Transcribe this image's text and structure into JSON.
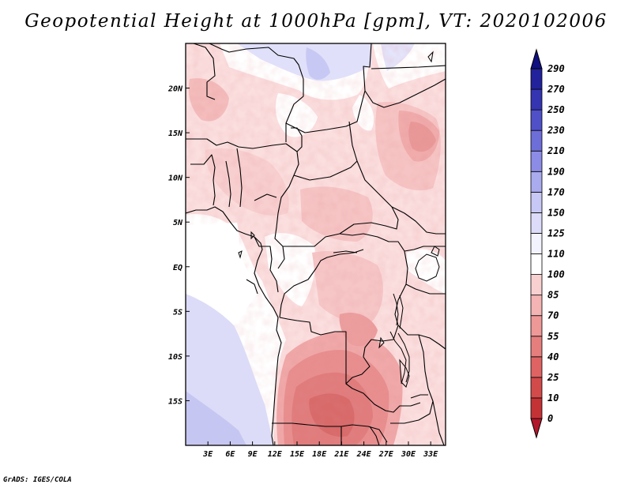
{
  "title": "Geopotential Height at 1000hPa [gpm], VT: 2020102006",
  "credit": "GrADS: IGES/COLA",
  "map": {
    "lon_range": [
      0,
      35
    ],
    "lat_range": [
      -20,
      25
    ],
    "lon_ticks": [
      {
        "value": 3,
        "label": "3E"
      },
      {
        "value": 6,
        "label": "6E"
      },
      {
        "value": 9,
        "label": "9E"
      },
      {
        "value": 12,
        "label": "12E"
      },
      {
        "value": 15,
        "label": "15E"
      },
      {
        "value": 18,
        "label": "18E"
      },
      {
        "value": 21,
        "label": "21E"
      },
      {
        "value": 24,
        "label": "24E"
      },
      {
        "value": 27,
        "label": "27E"
      },
      {
        "value": 30,
        "label": "30E"
      },
      {
        "value": 33,
        "label": "33E"
      }
    ],
    "lat_ticks": [
      {
        "value": 20,
        "label": "20N"
      },
      {
        "value": 15,
        "label": "15N"
      },
      {
        "value": 10,
        "label": "10N"
      },
      {
        "value": 5,
        "label": "5N"
      },
      {
        "value": 0,
        "label": "EQ"
      },
      {
        "value": -5,
        "label": "5S"
      },
      {
        "value": -10,
        "label": "10S"
      },
      {
        "value": -15,
        "label": "15S"
      }
    ]
  },
  "colorbar": {
    "levels": [
      "0",
      "10",
      "25",
      "40",
      "55",
      "70",
      "85",
      "100",
      "110",
      "125",
      "150",
      "170",
      "190",
      "210",
      "230",
      "250",
      "270",
      "290"
    ],
    "colors": [
      "#b2182b",
      "#c43236",
      "#d34a4a",
      "#df6363",
      "#e67e7e",
      "#ee9898",
      "#f4b4b4",
      "#f9d0d0",
      "#ffffff",
      "#f3f3ff",
      "#dcdcfa",
      "#c8c8f6",
      "#aaaaee",
      "#8c8ce6",
      "#6e6ed8",
      "#5050c8",
      "#3535b2",
      "#22229c",
      "#101080"
    ]
  }
}
